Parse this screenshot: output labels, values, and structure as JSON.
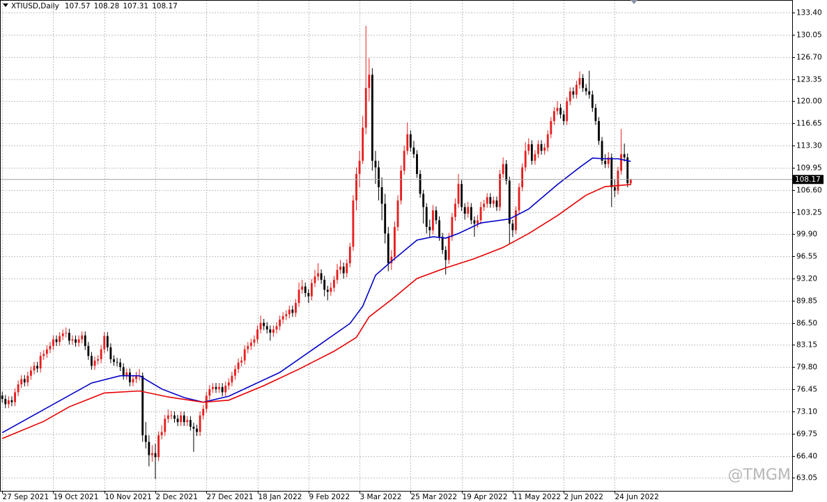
{
  "chart_data": {
    "type": "candlestick",
    "symbol": "XTIUSD,Daily",
    "watermark": "@TMGM",
    "up_color": "#e61e1e",
    "down_color": "#000000",
    "grid": true,
    "xlim": [
      -0.7,
      247.6
    ],
    "ylim": [
      61.1,
      135.3
    ],
    "yticks": [
      {
        "value": 133.4,
        "label": "133.40"
      },
      130.05,
      {
        "value": 126.7,
        "label": "126.70"
      },
      123.35,
      {
        "value": 120,
        "label": "120.00"
      },
      116.65,
      {
        "value": 113.3,
        "label": "113.30"
      },
      109.95,
      {
        "value": 106.6,
        "label": "106.60"
      },
      103.25,
      {
        "value": 99.9,
        "label": "99.90"
      },
      96.55,
      {
        "value": 93.2,
        "label": "93.20"
      },
      89.85,
      {
        "value": 86.5,
        "label": "86.50"
      },
      83.15,
      {
        "value": 79.8,
        "label": "79.80"
      },
      76.45,
      {
        "value": 73.1,
        "label": "73.10"
      },
      69.75,
      {
        "value": 66.4,
        "label": "66.40"
      },
      63.05
    ],
    "xticks": [
      {
        "value": 0,
        "label": "27 Sep 2021"
      },
      {
        "value": 16,
        "label": "19 Oct 2021"
      },
      {
        "value": 32,
        "label": "10 Nov 2021"
      },
      {
        "value": 48,
        "label": "2 Dec 2021"
      },
      {
        "value": 64,
        "label": "27 Dec 2021"
      },
      {
        "value": 80,
        "label": "18 Jan 2022"
      },
      {
        "value": 96,
        "label": "9 Feb 2022"
      },
      {
        "value": 112,
        "label": "3 Mar 2022"
      },
      {
        "value": 128,
        "label": "25 Mar 2022"
      },
      {
        "value": 144,
        "label": "19 Apr 2022"
      },
      {
        "value": 160,
        "label": "11 May 2022"
      },
      {
        "value": 176,
        "label": "2 Jun 2022"
      },
      {
        "value": 192,
        "label": "24 Jun 2022"
      }
    ],
    "candles": [
      [
        75.5,
        76.1,
        74.4,
        75
      ],
      [
        75,
        75.6,
        73.6,
        74.2
      ],
      [
        74.2,
        75.4,
        73.6,
        74.8
      ],
      [
        74.8,
        75.4,
        73.9,
        74.5
      ],
      [
        74.5,
        76.6,
        73.9,
        76
      ],
      [
        76,
        77.8,
        75.4,
        77.2
      ],
      [
        77.2,
        78.6,
        76.6,
        78
      ],
      [
        78,
        78.6,
        76.9,
        77.5
      ],
      [
        77.5,
        79.1,
        76.9,
        78.5
      ],
      [
        78.5,
        79.9,
        77.9,
        79.3
      ],
      [
        79.3,
        80.6,
        78.7,
        80
      ],
      [
        80,
        80.6,
        79,
        79.6
      ],
      [
        79.6,
        82.1,
        79,
        81.5
      ],
      [
        81.5,
        82.4,
        80.9,
        81.8
      ],
      [
        81.8,
        83.1,
        81.2,
        82.5
      ],
      [
        82.5,
        83.6,
        81.9,
        83
      ],
      [
        83,
        84.6,
        82.4,
        84
      ],
      [
        84,
        84.6,
        83,
        83.6
      ],
      [
        83.6,
        85.1,
        83,
        84.5
      ],
      [
        84.5,
        85.5,
        83.9,
        84.9
      ],
      [
        84.9,
        85.8,
        84.3,
        85
      ],
      [
        85,
        85.6,
        83.2,
        83.8
      ],
      [
        83.8,
        84.6,
        83.2,
        84
      ],
      [
        84,
        84.6,
        82.9,
        83.5
      ],
      [
        83.5,
        84.6,
        82.9,
        84
      ],
      [
        84,
        85.2,
        83.4,
        84.6
      ],
      [
        84.6,
        85.2,
        82.4,
        83
      ],
      [
        83,
        83.6,
        80.9,
        81.5
      ],
      [
        81.5,
        82.1,
        79.4,
        80
      ],
      [
        80,
        81.4,
        79.4,
        80.8
      ],
      [
        80.8,
        81.6,
        80.2,
        81
      ],
      [
        81,
        83.1,
        80.4,
        82.5
      ],
      [
        82.5,
        85.1,
        81.9,
        84.5
      ],
      [
        84.5,
        85.1,
        82.2,
        82.8
      ],
      [
        82.8,
        83.4,
        80.4,
        81
      ],
      [
        81,
        81.6,
        80,
        80.6
      ],
      [
        80.6,
        81.2,
        79.9,
        80.5
      ],
      [
        80.5,
        81.1,
        79.2,
        79.8
      ],
      [
        79.8,
        80.4,
        77.9,
        78.5
      ],
      [
        78.5,
        79.6,
        77.9,
        79
      ],
      [
        79,
        79.6,
        76.9,
        77.5
      ],
      [
        77.5,
        78.6,
        76.9,
        78
      ],
      [
        78,
        79.1,
        77.4,
        78.5
      ],
      [
        78.5,
        79.5,
        77.8,
        78.5
      ],
      [
        78.5,
        79,
        68.5,
        69.5
      ],
      [
        69.5,
        71.5,
        67.5,
        68.5
      ],
      [
        68.5,
        69.5,
        64.8,
        66.5
      ],
      [
        66.5,
        68,
        65.5,
        66.8
      ],
      [
        66.8,
        68.2,
        62.9,
        66.2
      ],
      [
        66.2,
        70.1,
        65.6,
        69.5
      ],
      [
        69.5,
        71,
        68.9,
        70
      ],
      [
        70,
        72.6,
        69.4,
        72
      ],
      [
        72,
        73.4,
        71.4,
        72.5
      ],
      [
        72.5,
        73.2,
        71.9,
        72.5
      ],
      [
        72.5,
        73.1,
        71.4,
        72
      ],
      [
        72,
        72.6,
        70.9,
        71.5
      ],
      [
        71.5,
        73.1,
        70.9,
        72.5
      ],
      [
        72.5,
        73.1,
        70.9,
        71.5
      ],
      [
        71.5,
        72.4,
        70.9,
        71.8
      ],
      [
        71.8,
        72.4,
        70.2,
        70.8
      ],
      [
        70.8,
        71.4,
        67,
        70.5
      ],
      [
        70.5,
        71.1,
        69.4,
        70
      ],
      [
        70,
        73.1,
        69.4,
        72.5
      ],
      [
        72.5,
        74.1,
        71.9,
        73.5
      ],
      [
        73.5,
        76.1,
        72.9,
        75.5
      ],
      [
        75.5,
        77.1,
        74.9,
        76.5
      ],
      [
        76.5,
        77.4,
        75.9,
        76.8
      ],
      [
        76.8,
        77.4,
        75.9,
        76.5
      ],
      [
        76.5,
        77.4,
        75.9,
        76.8
      ],
      [
        76.8,
        77.4,
        75.4,
        76
      ],
      [
        76,
        77.6,
        75.4,
        77
      ],
      [
        77,
        78.1,
        76.4,
        77.5
      ],
      [
        77.5,
        79.1,
        76.9,
        78.5
      ],
      [
        78.5,
        80.1,
        77.9,
        79.5
      ],
      [
        79.5,
        81.1,
        78.9,
        80.5
      ],
      [
        80.5,
        81.4,
        79.9,
        80.8
      ],
      [
        80.8,
        83.1,
        80.2,
        82.5
      ],
      [
        82.5,
        83.6,
        81.9,
        83
      ],
      [
        83,
        84.1,
        82.4,
        83.5
      ],
      [
        83.5,
        84.6,
        82.9,
        84
      ],
      [
        84,
        86.1,
        83.4,
        85.5
      ],
      [
        85.5,
        87.6,
        84.9,
        86.5
      ],
      [
        86.5,
        87.1,
        85.4,
        86
      ],
      [
        86,
        86.6,
        84.9,
        85.5
      ],
      [
        85.5,
        86.1,
        83.8,
        85
      ],
      [
        85,
        86.1,
        84.4,
        85.5
      ],
      [
        85.5,
        86.6,
        84.9,
        86
      ],
      [
        86,
        87.6,
        85.4,
        87
      ],
      [
        87,
        88.1,
        86.4,
        87.5
      ],
      [
        87.5,
        88.4,
        86.9,
        87.8
      ],
      [
        87.8,
        89.1,
        87.2,
        88.5
      ],
      [
        88.5,
        89.1,
        87.4,
        88
      ],
      [
        88,
        90.1,
        87.4,
        89.5
      ],
      [
        89.5,
        92.6,
        88.9,
        91.5
      ],
      [
        91.5,
        93,
        90.9,
        92
      ],
      [
        92,
        92.6,
        90.4,
        91
      ],
      [
        91,
        91.6,
        89.5,
        90.5
      ],
      [
        90.5,
        93.1,
        89.9,
        92.5
      ],
      [
        92.5,
        94.5,
        91.9,
        93.5
      ],
      [
        93.5,
        95.5,
        92.9,
        94
      ],
      [
        94,
        94.6,
        92.4,
        93
      ],
      [
        93,
        93.6,
        90.5,
        91.5
      ],
      [
        91.5,
        92.1,
        89.9,
        91.2
      ],
      [
        91.2,
        92.6,
        90.6,
        91.8
      ],
      [
        91.8,
        93.6,
        91.2,
        93
      ],
      [
        93,
        95.4,
        92.4,
        94.5
      ],
      [
        94.5,
        96,
        93.9,
        95
      ],
      [
        95,
        95.6,
        93.2,
        94
      ],
      [
        94,
        96.1,
        93.4,
        95.5
      ],
      [
        95.5,
        98.6,
        94.9,
        98
      ],
      [
        98,
        105.8,
        97.4,
        105
      ],
      [
        105,
        110,
        103.5,
        109
      ],
      [
        109,
        112.5,
        107,
        111
      ],
      [
        111,
        117.8,
        110.5,
        116
      ],
      [
        116,
        131.4,
        115,
        122
      ],
      [
        122,
        126.5,
        120,
        124
      ],
      [
        124,
        125,
        109.5,
        111
      ],
      [
        111,
        112.5,
        107.5,
        110
      ],
      [
        110,
        111,
        105,
        107
      ],
      [
        107,
        108.5,
        102,
        104.5
      ],
      [
        104.5,
        106,
        98.5,
        100
      ],
      [
        100,
        101,
        94.3,
        95.5
      ],
      [
        95.5,
        97.5,
        94.5,
        96.5
      ],
      [
        96.5,
        101.8,
        95.9,
        101
      ],
      [
        101,
        105.8,
        100.4,
        105
      ],
      [
        105,
        110.3,
        104.4,
        109.5
      ],
      [
        109.5,
        113.3,
        108.9,
        112.5
      ],
      [
        112.5,
        116.8,
        111.9,
        115
      ],
      [
        115,
        115.6,
        112.4,
        113
      ],
      [
        113,
        114,
        111.4,
        112
      ],
      [
        112,
        112.6,
        108.4,
        109
      ],
      [
        109,
        109.6,
        105.4,
        106
      ],
      [
        106,
        106.6,
        101.5,
        104
      ],
      [
        104,
        104.6,
        100,
        101
      ],
      [
        101,
        102.1,
        99.5,
        100.5
      ],
      [
        100.5,
        104.3,
        99.9,
        103.5
      ],
      [
        103.5,
        104.1,
        101.4,
        102
      ],
      [
        102,
        102.6,
        98.9,
        99.5
      ],
      [
        99.5,
        100.1,
        96.9,
        97.5
      ],
      [
        97.5,
        98.1,
        93.8,
        96
      ],
      [
        96,
        100.1,
        95.4,
        99.5
      ],
      [
        99.5,
        103.1,
        98.9,
        102.5
      ],
      [
        102.5,
        105.3,
        101.9,
        104.5
      ],
      [
        104.5,
        109,
        103.9,
        107.5
      ],
      [
        107.5,
        108.1,
        103.4,
        104
      ],
      [
        104,
        104.6,
        102.1,
        103
      ],
      [
        103,
        104.8,
        102.4,
        104
      ],
      [
        104,
        104.6,
        101.4,
        102
      ],
      [
        102,
        102.6,
        99.5,
        101.5
      ],
      [
        101.5,
        102.8,
        100.9,
        102
      ],
      [
        102,
        104.8,
        101.4,
        104
      ],
      [
        104,
        105.1,
        103.4,
        104.5
      ],
      [
        104.5,
        106.1,
        103.9,
        105.5
      ],
      [
        105.5,
        106.1,
        103.9,
        104.5
      ],
      [
        104.5,
        105.6,
        103.9,
        105
      ],
      [
        105,
        105.6,
        103.4,
        104
      ],
      [
        104,
        109.6,
        103.4,
        109
      ],
      [
        109,
        111.5,
        108.4,
        110.5
      ],
      [
        110.5,
        111.1,
        107.4,
        108
      ],
      [
        108,
        108.6,
        98.5,
        101.5
      ],
      [
        101.5,
        102.1,
        99.5,
        100.5
      ],
      [
        100.5,
        104.1,
        99.9,
        103.5
      ],
      [
        103.5,
        107.6,
        102.9,
        107
      ],
      [
        107,
        110.6,
        106.4,
        110
      ],
      [
        110,
        113.8,
        109.4,
        112.5
      ],
      [
        112.5,
        114.4,
        111.9,
        113.5
      ],
      [
        113.5,
        114.1,
        110.4,
        111
      ],
      [
        111,
        112.6,
        110.4,
        112
      ],
      [
        112,
        114.1,
        111.4,
        113.5
      ],
      [
        113.5,
        114.1,
        111.9,
        112.5
      ],
      [
        112.5,
        113.6,
        111.9,
        113
      ],
      [
        113,
        115.6,
        112.4,
        115
      ],
      [
        115,
        117.6,
        114.4,
        117
      ],
      [
        117,
        119.1,
        116.4,
        118.5
      ],
      [
        118.5,
        120,
        117.9,
        119
      ],
      [
        119,
        119.6,
        117.4,
        118
      ],
      [
        118,
        118.6,
        116.4,
        117
      ],
      [
        117,
        120.6,
        116.4,
        120
      ],
      [
        120,
        122.1,
        119.4,
        121.5
      ],
      [
        121.5,
        122.1,
        120.4,
        121
      ],
      [
        121,
        123.1,
        120.4,
        122.5
      ],
      [
        122.5,
        124.5,
        121.9,
        123.5
      ],
      [
        123.5,
        124.1,
        121.4,
        122
      ],
      [
        122,
        122.6,
        120.9,
        121.5
      ],
      [
        121.5,
        124.6,
        120.4,
        121
      ],
      [
        121,
        121.6,
        118.4,
        119
      ],
      [
        119,
        119.6,
        116.4,
        117
      ],
      [
        117,
        117.6,
        113.4,
        114
      ],
      [
        114,
        114.6,
        110.4,
        111
      ],
      [
        111,
        112,
        109.9,
        110.5
      ],
      [
        110.5,
        112.3,
        109.9,
        111.5
      ],
      [
        111.5,
        112.1,
        104,
        107
      ],
      [
        107,
        108.1,
        105.5,
        106.5
      ],
      [
        106.5,
        110.1,
        105.9,
        109.5
      ],
      [
        109.5,
        115.8,
        108.9,
        112
      ],
      [
        112,
        113.6,
        110.9,
        111.5
      ],
      [
        111.5,
        112.1,
        107,
        107.6
      ],
      [
        107.57,
        108.28,
        107.31,
        108.17
      ]
    ],
    "lines": [
      {
        "color": "#0000c8",
        "x": [
          0,
          28,
          37,
          43,
          50,
          57,
          63,
          71,
          87,
          98,
          109,
          113,
          117,
          122,
          130,
          135,
          139,
          143,
          150,
          159,
          165,
          174,
          181,
          185,
          189,
          193,
          197
        ],
        "values": [
          69.9,
          77.4,
          78.5,
          78.5,
          76.5,
          75.2,
          74.5,
          75.4,
          79,
          82.7,
          86.4,
          89,
          93.7,
          95.8,
          99,
          99.5,
          99.3,
          100,
          101.6,
          102.2,
          103.7,
          107.4,
          110,
          111.4,
          111.3,
          111.3,
          110.9
        ]
      },
      {
        "color": "#e60000",
        "x": [
          0,
          13,
          21,
          32,
          43,
          52,
          63,
          71,
          82,
          93,
          104,
          111,
          115,
          122,
          130,
          139,
          148,
          157,
          165,
          174,
          183,
          189,
          197
        ],
        "values": [
          69,
          71.6,
          73.8,
          75.9,
          76.2,
          75.3,
          74.5,
          74.8,
          77,
          79.5,
          82.2,
          84.3,
          87.4,
          90,
          93.2,
          94.8,
          96.2,
          97.9,
          100,
          102.7,
          105.8,
          107.1,
          107.4
        ]
      }
    ]
  }
}
